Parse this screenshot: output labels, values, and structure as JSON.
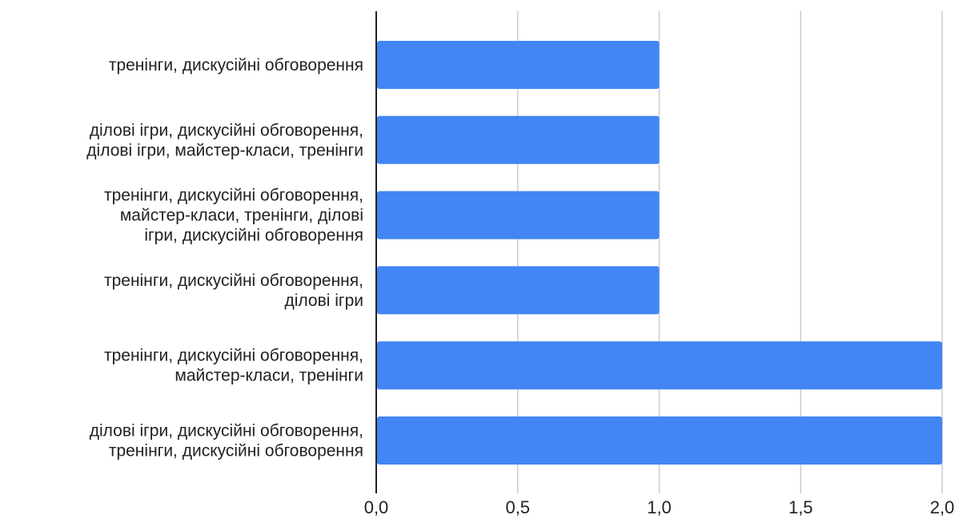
{
  "chart_data": {
    "type": "bar",
    "orientation": "horizontal",
    "categories": [
      [
        "тренінги, дискусійні обговорення"
      ],
      [
        "ділові ігри, дискусійні обговорення,",
        "ділові ігри, майстер-класи, тренінги"
      ],
      [
        "тренінги, дискусійні обговорення,",
        "майстер-класи, тренінги, ділові",
        "ігри, дискусійні обговорення"
      ],
      [
        "тренінги, дискусійні обговорення,",
        "ділові ігри"
      ],
      [
        "тренінги, дискусійні обговорення,",
        "майстер-класи, тренінги"
      ],
      [
        "ділові ігри, дискусійні обговорення,",
        "тренінги, дискусійні обговорення"
      ]
    ],
    "values": [
      1,
      1,
      1,
      1,
      2,
      2
    ],
    "xlim": [
      0,
      2
    ],
    "xticks": [
      0,
      0.5,
      1,
      1.5,
      2
    ],
    "xtick_labels": [
      "0,0",
      "0,5",
      "1,0",
      "1,5",
      "2,0"
    ],
    "grid": "vertical",
    "legend": "none",
    "bar_color": "#4285f4",
    "grid_color": "#cccccc",
    "axis_color": "#222222",
    "title": "",
    "xlabel": "",
    "ylabel": ""
  }
}
